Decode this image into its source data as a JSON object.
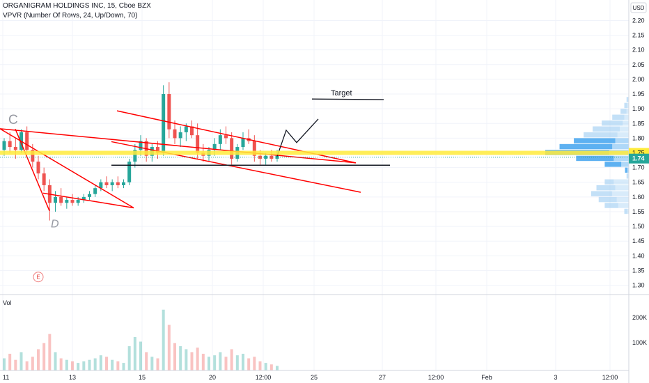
{
  "header": {
    "title": "ORGANIGRAM HOLDINGS INC, 15, Cboe BZX",
    "indicator": "VPVR (Number Of Rows, 24, Up/Down, 70)"
  },
  "currency": "USD",
  "volume_label": "Vol",
  "chart_data": [
    {
      "type": "candlestick",
      "title": "ORGANIGRAM HOLDINGS INC, 15, Cboe BZX",
      "ylim": [
        1.28,
        2.24
      ],
      "y_ticks": [
        "2.20",
        "2.15",
        "2.10",
        "2.05",
        "2.00",
        "1.95",
        "1.90",
        "1.85",
        "1.80",
        "1.75",
        "1.70",
        "1.65",
        "1.60",
        "1.55",
        "1.50",
        "1.45",
        "1.40",
        "1.35",
        "1.30"
      ],
      "x_ticks": [
        "11",
        "13",
        "15",
        "20",
        "12:00",
        "25",
        "27",
        "12:00",
        "Feb",
        "3",
        "12:00"
      ],
      "last_price": "1.74",
      "marked_level": "1.75",
      "colors": {
        "up": "#26a69a",
        "down": "#ef5350",
        "channel": "#ff0000",
        "support": "#131722",
        "level": "#ffeb3b",
        "vp_up": "#4da8f0",
        "vp_down": "#a9d3f3"
      },
      "grid": true,
      "series": [
        {
          "values": [
            [
              1.76,
              1.8,
              1.74,
              1.79
            ],
            [
              1.79,
              1.82,
              1.75,
              1.77
            ],
            [
              1.77,
              1.8,
              1.73,
              1.76
            ],
            [
              1.76,
              1.83,
              1.75,
              1.82
            ],
            [
              1.82,
              1.84,
              1.75,
              1.76
            ],
            [
              1.76,
              1.78,
              1.7,
              1.72
            ],
            [
              1.72,
              1.74,
              1.66,
              1.68
            ],
            [
              1.68,
              1.7,
              1.62,
              1.64
            ],
            [
              1.64,
              1.66,
              1.52,
              1.58
            ],
            [
              1.58,
              1.62,
              1.55,
              1.6
            ],
            [
              1.6,
              1.63,
              1.57,
              1.58
            ],
            [
              1.58,
              1.6,
              1.56,
              1.59
            ],
            [
              1.59,
              1.61,
              1.57,
              1.58
            ],
            [
              1.58,
              1.6,
              1.57,
              1.59
            ],
            [
              1.59,
              1.61,
              1.58,
              1.6
            ],
            [
              1.6,
              1.62,
              1.59,
              1.61
            ],
            [
              1.61,
              1.64,
              1.6,
              1.63
            ],
            [
              1.63,
              1.66,
              1.62,
              1.65
            ],
            [
              1.65,
              1.67,
              1.63,
              1.64
            ],
            [
              1.64,
              1.66,
              1.62,
              1.65
            ],
            [
              1.65,
              1.67,
              1.63,
              1.64
            ],
            [
              1.64,
              1.66,
              1.63,
              1.65
            ],
            [
              1.65,
              1.73,
              1.64,
              1.72
            ],
            [
              1.72,
              1.78,
              1.7,
              1.76
            ],
            [
              1.76,
              1.81,
              1.74,
              1.79
            ],
            [
              1.79,
              1.8,
              1.72,
              1.74
            ],
            [
              1.74,
              1.78,
              1.72,
              1.77
            ],
            [
              1.77,
              1.79,
              1.73,
              1.75
            ],
            [
              1.75,
              1.98,
              1.74,
              1.95
            ],
            [
              1.95,
              1.99,
              1.8,
              1.83
            ],
            [
              1.83,
              1.86,
              1.78,
              1.8
            ],
            [
              1.8,
              1.84,
              1.77,
              1.82
            ],
            [
              1.82,
              1.85,
              1.79,
              1.84
            ],
            [
              1.84,
              1.86,
              1.8,
              1.81
            ],
            [
              1.81,
              1.85,
              1.73,
              1.75
            ],
            [
              1.75,
              1.78,
              1.72,
              1.74
            ],
            [
              1.74,
              1.77,
              1.72,
              1.76
            ],
            [
              1.76,
              1.8,
              1.74,
              1.78
            ],
            [
              1.78,
              1.83,
              1.76,
              1.81
            ],
            [
              1.81,
              1.84,
              1.78,
              1.8
            ],
            [
              1.8,
              1.82,
              1.71,
              1.73
            ],
            [
              1.73,
              1.78,
              1.72,
              1.77
            ],
            [
              1.77,
              1.82,
              1.76,
              1.8
            ],
            [
              1.8,
              1.83,
              1.78,
              1.79
            ],
            [
              1.79,
              1.81,
              1.72,
              1.74
            ],
            [
              1.74,
              1.76,
              1.71,
              1.73
            ],
            [
              1.73,
              1.75,
              1.71,
              1.74
            ],
            [
              1.74,
              1.76,
              1.72,
              1.73
            ],
            [
              1.73,
              1.76,
              1.72,
              1.74
            ]
          ]
        }
      ],
      "volume": [
        40,
        55,
        35,
        60,
        30,
        45,
        70,
        90,
        120,
        60,
        40,
        35,
        30,
        25,
        30,
        35,
        40,
        50,
        45,
        35,
        30,
        25,
        80,
        110,
        95,
        60,
        45,
        40,
        200,
        150,
        90,
        80,
        70,
        60,
        75,
        55,
        45,
        50,
        60,
        45,
        70,
        50,
        55,
        40,
        45,
        30,
        25,
        20,
        15
      ],
      "volume_ticks": [
        "200K",
        "100K"
      ],
      "volume_profile": {
        "prices": [
          1.93,
          1.91,
          1.89,
          1.87,
          1.85,
          1.83,
          1.81,
          1.79,
          1.77,
          1.75,
          1.73,
          1.71,
          1.69,
          1.67,
          1.65,
          1.63,
          1.61,
          1.59,
          1.57,
          1.55
        ],
        "up": [
          2,
          4,
          8,
          16,
          28,
          36,
          45,
          55,
          70,
          85,
          50,
          22,
          3,
          2,
          12,
          25,
          28,
          24,
          18,
          4
        ],
        "down": [
          1,
          2,
          3,
          6,
          8,
          12,
          15,
          18,
          22,
          26,
          20,
          10,
          2,
          1,
          20,
          18,
          22,
          16,
          14,
          2
        ]
      },
      "annotations": [
        {
          "text": "Target"
        },
        {
          "text": "C"
        },
        {
          "text": "D"
        },
        {
          "text": "E"
        }
      ]
    }
  ]
}
